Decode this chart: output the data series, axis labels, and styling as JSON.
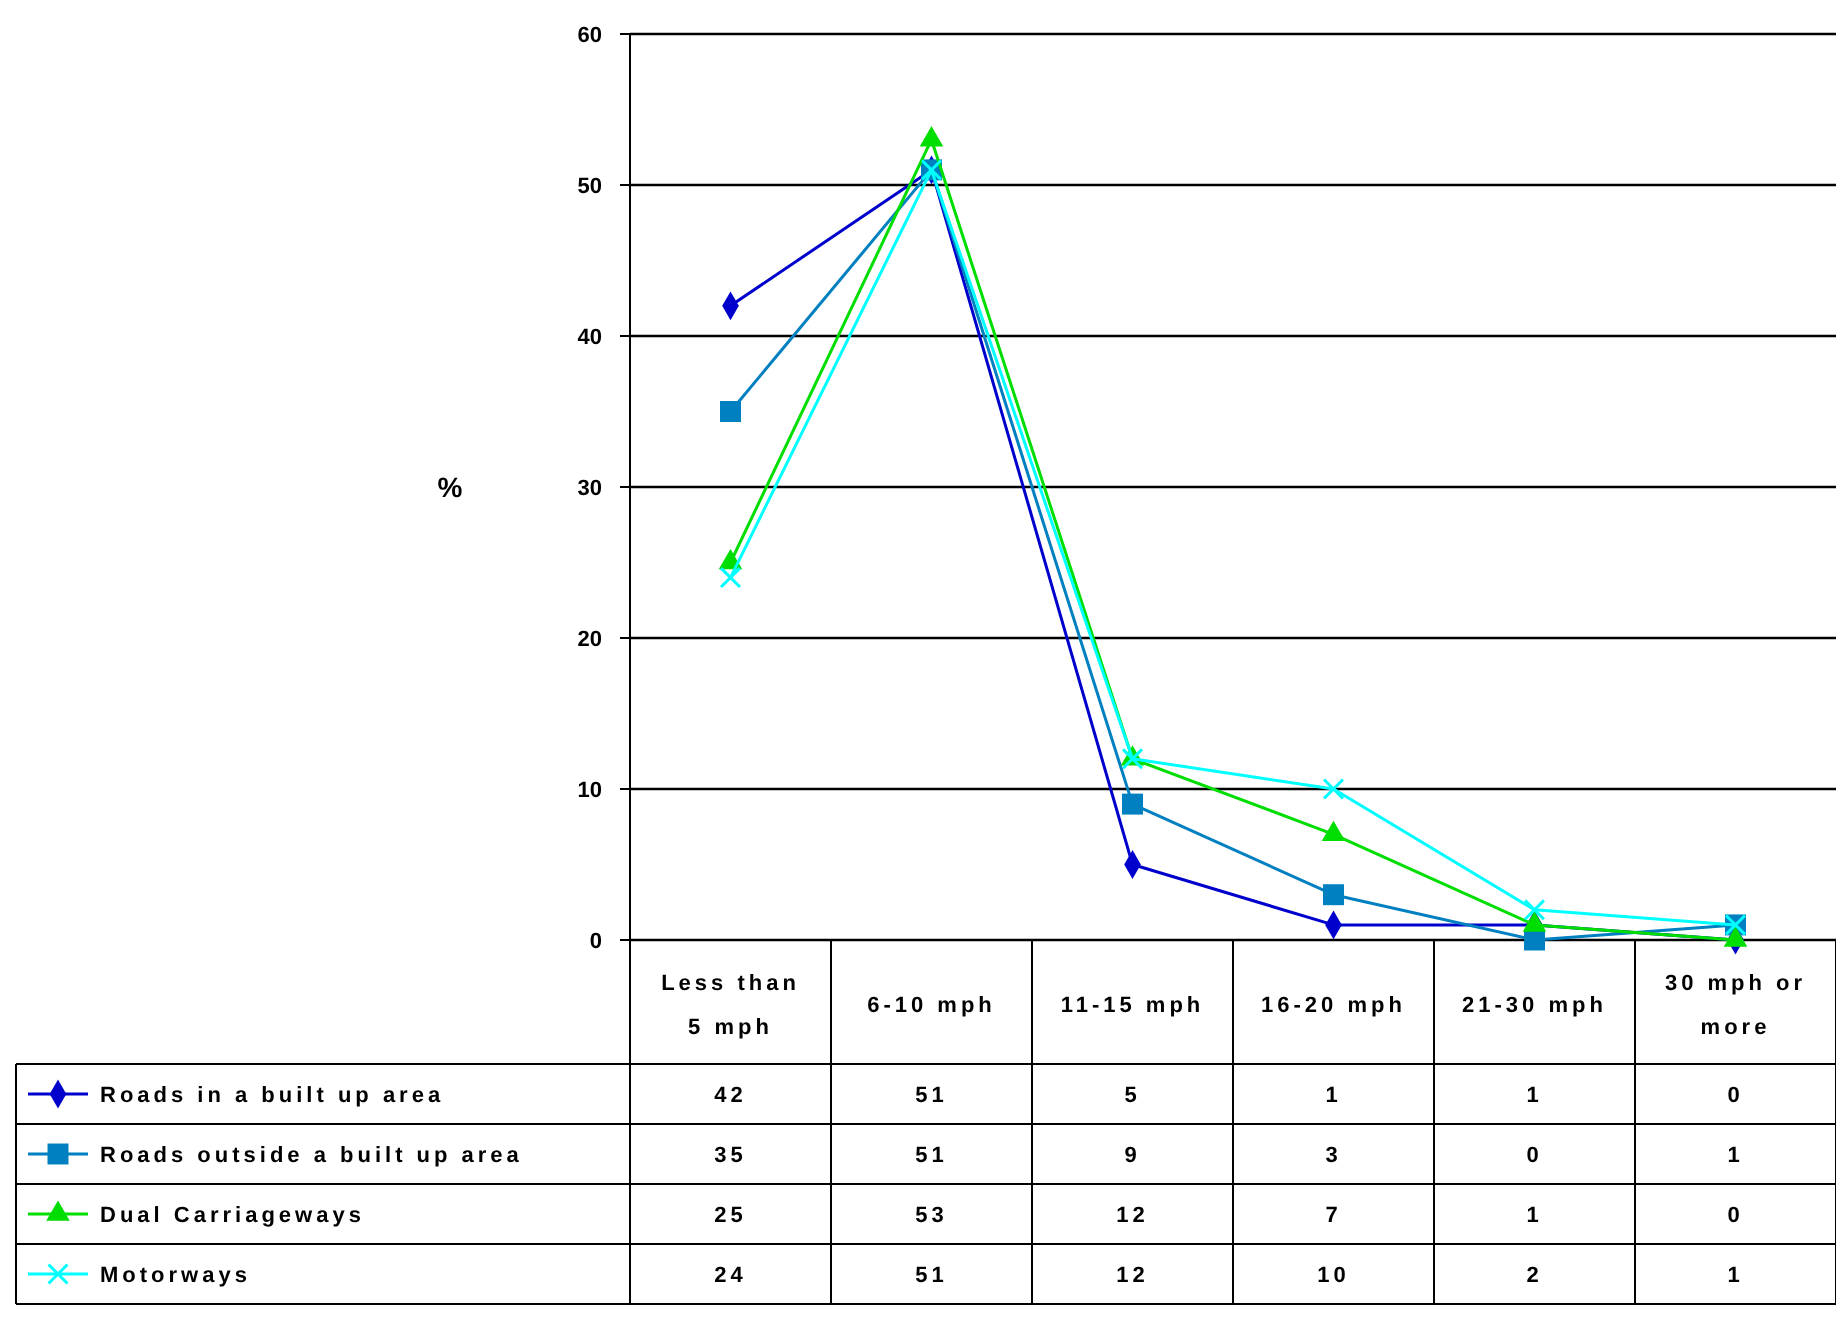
{
  "chart_data": {
    "type": "line",
    "ylabel": "%",
    "categories": [
      "Less than 5 mph",
      "6-10 mph",
      "11-15 mph",
      "16-20 mph",
      "21-30 mph",
      "30 mph or more"
    ],
    "series": [
      {
        "name": "Roads in a built up area",
        "color": "#0000cc",
        "marker": "diamond",
        "values": [
          42,
          51,
          5,
          1,
          1,
          0
        ]
      },
      {
        "name": "Roads outside a built up area",
        "color": "#0080c0",
        "marker": "square",
        "values": [
          35,
          51,
          9,
          3,
          0,
          1
        ]
      },
      {
        "name": "Dual Carriageways",
        "color": "#00dd00",
        "marker": "triangle",
        "values": [
          25,
          53,
          12,
          7,
          1,
          0
        ]
      },
      {
        "name": "Motorways",
        "color": "#00ffff",
        "marker": "cross",
        "values": [
          24,
          51,
          12,
          10,
          2,
          1
        ]
      }
    ],
    "ylim": [
      0,
      60
    ],
    "yticks": [
      0,
      10,
      20,
      30,
      40,
      50,
      60
    ],
    "grid": "y",
    "legend": "bottom left",
    "data_labels": true
  }
}
